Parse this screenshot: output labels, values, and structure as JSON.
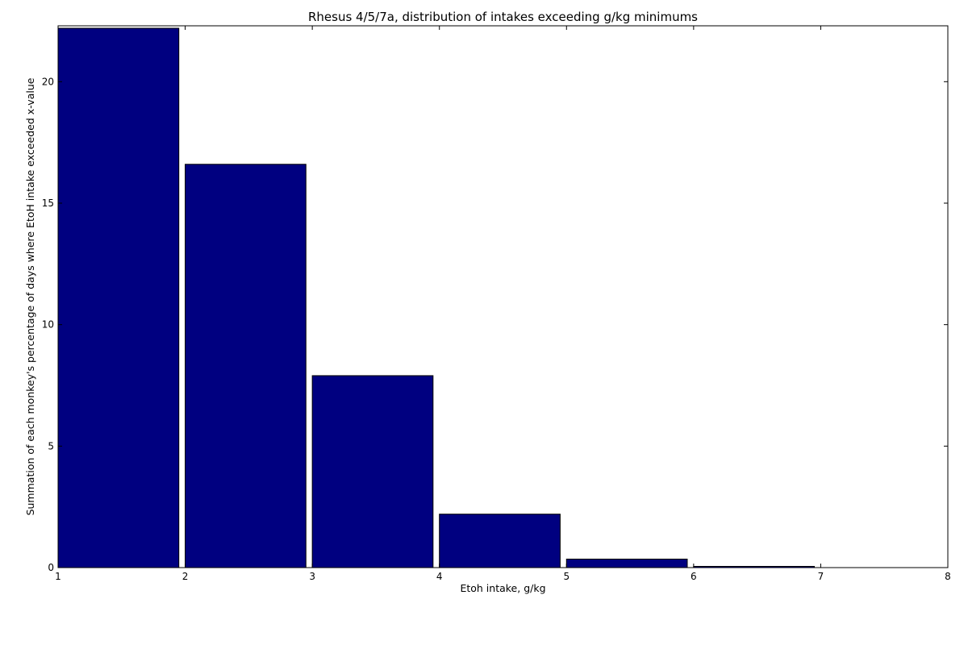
{
  "chart_data": {
    "type": "bar",
    "title": "Rhesus 4/5/7a, distribution of intakes exceeding g/kg minimums",
    "xlabel": "Etoh intake, g/kg",
    "ylabel": "Summation of each monkey's percentage of days where EtoH intake exceeded x-value",
    "xlim": [
      1,
      8
    ],
    "ylim": [
      0,
      22.3
    ],
    "xticks": [
      1,
      2,
      3,
      4,
      5,
      6,
      7,
      8
    ],
    "yticks": [
      0,
      5,
      10,
      15,
      20
    ],
    "bar_width": 0.95,
    "bar_color": "#000080",
    "grid": false,
    "bars": [
      {
        "x": 1,
        "value": 22.2
      },
      {
        "x": 2,
        "value": 16.6
      },
      {
        "x": 3,
        "value": 7.9
      },
      {
        "x": 4,
        "value": 2.2
      },
      {
        "x": 5,
        "value": 0.35
      },
      {
        "x": 6,
        "value": 0.05
      }
    ]
  }
}
